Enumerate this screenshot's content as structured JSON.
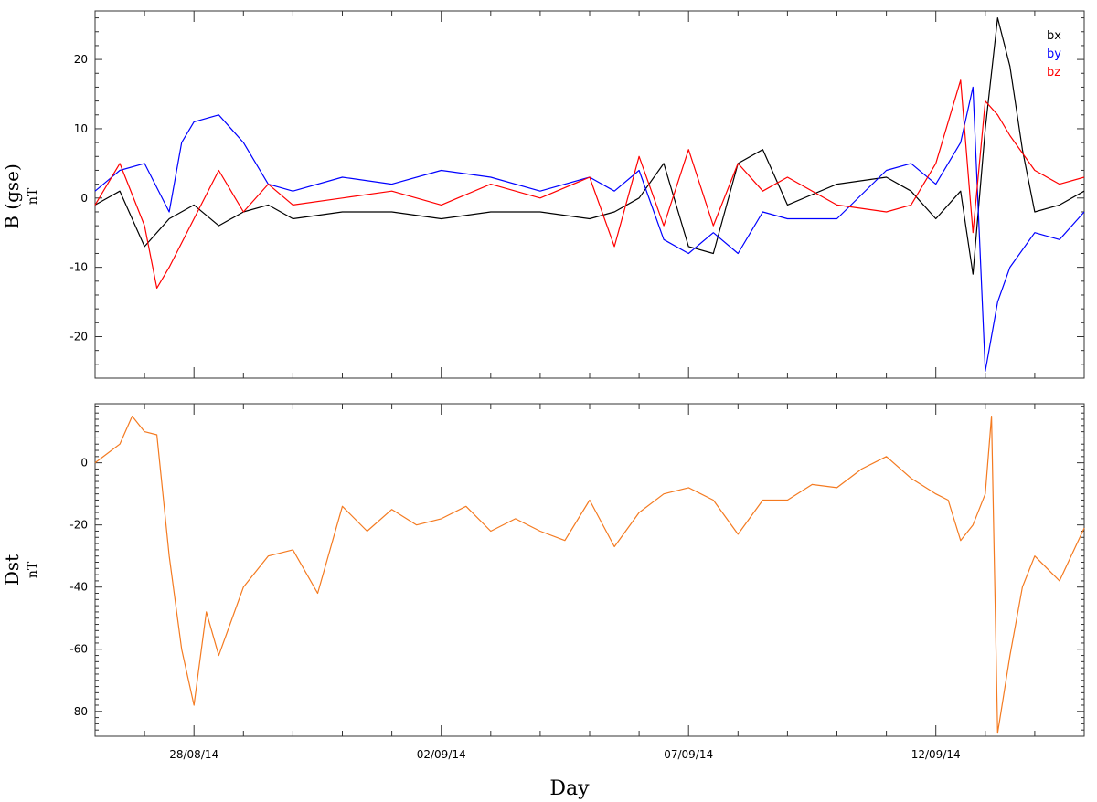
{
  "chart_data": [
    {
      "type": "line",
      "panel": "top",
      "ylabel": "B (gse)",
      "yunit": "nT",
      "ylim": [
        -26,
        27
      ],
      "yticks": [
        -20,
        -10,
        0,
        10,
        20
      ],
      "xlim": [
        "26/08/14",
        "15/09/14"
      ],
      "legend_position": "top-right",
      "series": [
        {
          "name": "bx",
          "color": "#000000",
          "x": [
            "26/08/14",
            "26/08/14 12:00",
            "27/08/14",
            "27/08/14 12:00",
            "28/08/14",
            "28/08/14 12:00",
            "29/08/14",
            "29/08/14 12:00",
            "30/08/14",
            "31/08/14",
            "01/09/14",
            "02/09/14",
            "03/09/14",
            "04/09/14",
            "05/09/14",
            "05/09/14 12:00",
            "06/09/14",
            "06/09/14 12:00",
            "07/09/14",
            "07/09/14 12:00",
            "08/09/14",
            "08/09/14 12:00",
            "09/09/14",
            "10/09/14",
            "11/09/14",
            "11/09/14 12:00",
            "12/09/14",
            "12/09/14 12:00",
            "12/09/14 18:00",
            "13/09/14",
            "13/09/14 06:00",
            "13/09/14 12:00",
            "13/09/14 18:00",
            "14/09/14",
            "14/09/14 12:00",
            "15/09/14"
          ],
          "values": [
            -1,
            1,
            -7,
            -3,
            -1,
            -4,
            -2,
            -1,
            -3,
            -2,
            -2,
            -3,
            -2,
            -2,
            -3,
            -2,
            0,
            5,
            -7,
            -8,
            5,
            7,
            -1,
            2,
            3,
            1,
            -3,
            1,
            -11,
            10,
            26,
            19,
            7,
            -2,
            -1,
            1
          ]
        },
        {
          "name": "by",
          "color": "#0000ff",
          "x": [
            "26/08/14",
            "26/08/14 12:00",
            "27/08/14",
            "27/08/14 12:00",
            "27/08/14 18:00",
            "28/08/14",
            "28/08/14 12:00",
            "29/08/14",
            "29/08/14 12:00",
            "30/08/14",
            "31/08/14",
            "01/09/14",
            "02/09/14",
            "03/09/14",
            "04/09/14",
            "05/09/14",
            "05/09/14 12:00",
            "06/09/14",
            "06/09/14 12:00",
            "07/09/14",
            "07/09/14 12:00",
            "08/09/14",
            "08/09/14 12:00",
            "09/09/14",
            "10/09/14",
            "11/09/14",
            "11/09/14 12:00",
            "12/09/14",
            "12/09/14 12:00",
            "12/09/14 18:00",
            "13/09/14",
            "13/09/14 06:00",
            "13/09/14 12:00",
            "14/09/14",
            "14/09/14 12:00",
            "15/09/14"
          ],
          "values": [
            1,
            4,
            5,
            -2,
            8,
            11,
            12,
            8,
            2,
            1,
            3,
            2,
            4,
            3,
            1,
            3,
            1,
            4,
            -6,
            -8,
            -5,
            -8,
            -2,
            -3,
            -3,
            4,
            5,
            2,
            8,
            16,
            -25,
            -15,
            -10,
            -5,
            -6,
            -2
          ]
        },
        {
          "name": "bz",
          "color": "#ff0000",
          "x": [
            "26/08/14",
            "26/08/14 12:00",
            "27/08/14",
            "27/08/14 06:00",
            "27/08/14 12:00",
            "28/08/14",
            "28/08/14 12:00",
            "29/08/14",
            "29/08/14 12:00",
            "30/08/14",
            "31/08/14",
            "01/09/14",
            "02/09/14",
            "03/09/14",
            "04/09/14",
            "05/09/14",
            "05/09/14 12:00",
            "06/09/14",
            "06/09/14 12:00",
            "07/09/14",
            "07/09/14 12:00",
            "08/09/14",
            "08/09/14 12:00",
            "09/09/14",
            "10/09/14",
            "11/09/14",
            "11/09/14 12:00",
            "12/09/14",
            "12/09/14 12:00",
            "12/09/14 18:00",
            "13/09/14",
            "13/09/14 06:00",
            "13/09/14 12:00",
            "14/09/14",
            "14/09/14 12:00",
            "15/09/14"
          ],
          "values": [
            -1,
            5,
            -4,
            -13,
            -10,
            -3,
            4,
            -2,
            2,
            -1,
            0,
            1,
            -1,
            2,
            0,
            3,
            -7,
            6,
            -4,
            7,
            -4,
            5,
            1,
            3,
            -1,
            -2,
            -1,
            5,
            17,
            -5,
            14,
            12,
            9,
            4,
            2,
            3
          ]
        }
      ]
    },
    {
      "type": "line",
      "panel": "bottom",
      "ylabel": "Dst",
      "yunit": "nT",
      "ylim": [
        -88,
        19
      ],
      "yticks": [
        -80,
        -60,
        -40,
        -20,
        0
      ],
      "xlim": [
        "26/08/14",
        "15/09/14"
      ],
      "xlabel": "Day",
      "xtick_labels": [
        "28/08/14",
        "02/09/14",
        "07/09/14",
        "12/09/14"
      ],
      "series": [
        {
          "name": "",
          "color": "#f47a20",
          "x": [
            "26/08/14",
            "26/08/14 12:00",
            "26/08/14 18:00",
            "27/08/14",
            "27/08/14 06:00",
            "27/08/14 12:00",
            "27/08/14 18:00",
            "28/08/14",
            "28/08/14 06:00",
            "28/08/14 12:00",
            "29/08/14",
            "29/08/14 12:00",
            "30/08/14",
            "30/08/14 12:00",
            "31/08/14",
            "31/08/14 12:00",
            "01/09/14",
            "01/09/14 12:00",
            "02/09/14",
            "02/09/14 12:00",
            "03/09/14",
            "03/09/14 12:00",
            "04/09/14",
            "04/09/14 12:00",
            "05/09/14",
            "05/09/14 12:00",
            "06/09/14",
            "06/09/14 12:00",
            "07/09/14",
            "07/09/14 12:00",
            "08/09/14",
            "08/09/14 12:00",
            "09/09/14",
            "09/09/14 12:00",
            "10/09/14",
            "10/09/14 12:00",
            "11/09/14",
            "11/09/14 12:00",
            "12/09/14",
            "12/09/14 06:00",
            "12/09/14 12:00",
            "12/09/14 18:00",
            "13/09/14",
            "13/09/14 03:00",
            "13/09/14 06:00",
            "13/09/14 12:00",
            "13/09/14 18:00",
            "14/09/14",
            "14/09/14 12:00",
            "15/09/14"
          ],
          "values": [
            0,
            6,
            15,
            10,
            9,
            -30,
            -60,
            -78,
            -48,
            -62,
            -40,
            -30,
            -28,
            -42,
            -14,
            -22,
            -15,
            -20,
            -18,
            -14,
            -22,
            -18,
            -22,
            -25,
            -12,
            -27,
            -16,
            -10,
            -8,
            -12,
            -23,
            -12,
            -12,
            -7,
            -8,
            -2,
            2,
            -5,
            -10,
            -12,
            -25,
            -20,
            -10,
            15,
            -87,
            -62,
            -40,
            -30,
            -38,
            -21
          ]
        }
      ]
    }
  ]
}
